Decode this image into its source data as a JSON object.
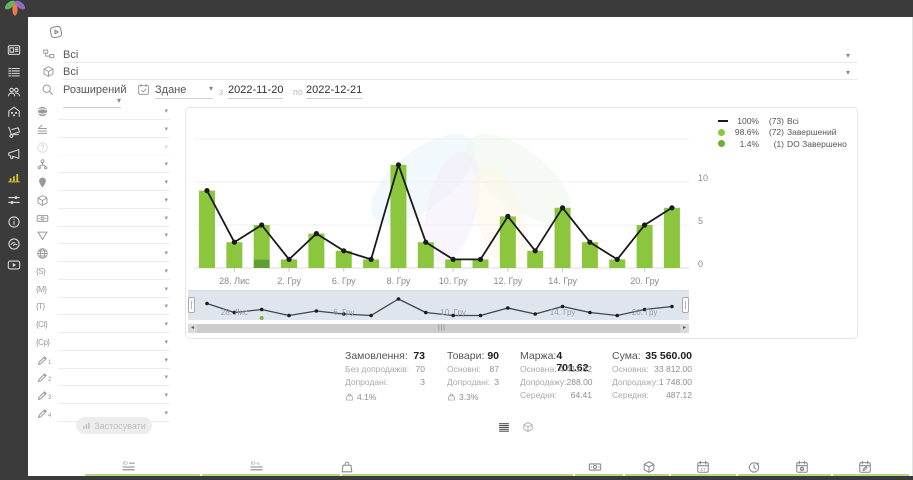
{
  "sidebar": {
    "items": [
      {
        "name": "dashboard",
        "icon": "dashboard",
        "active": false
      },
      {
        "name": "orders",
        "icon": "list",
        "active": false
      },
      {
        "name": "customers",
        "icon": "users",
        "active": false
      },
      {
        "name": "warehouse",
        "icon": "warehouse",
        "active": false
      },
      {
        "name": "purchases",
        "icon": "cart",
        "active": false
      },
      {
        "name": "marketing",
        "icon": "megaphone",
        "active": false
      },
      {
        "name": "analytics",
        "icon": "chart",
        "active": true
      },
      {
        "name": "automation",
        "icon": "sliders",
        "active": false
      },
      {
        "name": "info",
        "icon": "info",
        "active": false
      },
      {
        "name": "partners",
        "icon": "hands",
        "active": false
      },
      {
        "name": "tutorials",
        "icon": "video",
        "active": false
      }
    ]
  },
  "filters": {
    "status_value": "Всі",
    "product_value": "Всі",
    "mode_value": "Розширений",
    "date_type_value": "Здане",
    "from_label": "з",
    "from_value": "2022-11-20",
    "to_label": "по",
    "to_value": "2022-12-21",
    "apply_label": "Застосувати",
    "left_rows": [
      {
        "icon": "globesolid",
        "disabled": false
      },
      {
        "icon": "layers",
        "disabled": false
      },
      {
        "icon": "question",
        "disabled": true
      },
      {
        "icon": "sitemap",
        "disabled": false
      },
      {
        "icon": "pin",
        "disabled": false
      },
      {
        "icon": "cube",
        "disabled": false
      },
      {
        "icon": "banknote",
        "disabled": false
      },
      {
        "icon": "funnel",
        "disabled": false
      },
      {
        "icon": "globewire",
        "disabled": false
      },
      {
        "icon": "brace",
        "label": "S",
        "disabled": false
      },
      {
        "icon": "brace",
        "label": "M",
        "disabled": false
      },
      {
        "icon": "brace",
        "label": "T",
        "disabled": false
      },
      {
        "icon": "brace",
        "label": "Ct",
        "disabled": false
      },
      {
        "icon": "brace",
        "label": "Cp",
        "disabled": false
      },
      {
        "icon": "pencil",
        "label": "1",
        "disabled": false
      },
      {
        "icon": "pencil",
        "label": "2",
        "disabled": false
      },
      {
        "icon": "pencil",
        "label": "3",
        "disabled": false
      },
      {
        "icon": "pencil",
        "label": "4",
        "disabled": false
      }
    ]
  },
  "chart_data": {
    "type": "bar+line",
    "categories": [
      "",
      "28. Лис",
      "",
      "2. Гру",
      "",
      "6. Гру",
      "",
      "8. Гру",
      "",
      "10. Гру",
      "",
      "12. Гру",
      "",
      "14. Гру",
      "",
      "",
      "20. Гру",
      ""
    ],
    "series": [
      {
        "name": "Всі",
        "type": "line",
        "color": "#1a1a1a",
        "values": [
          9,
          3,
          5,
          1,
          4,
          2,
          1,
          12,
          3,
          1,
          1,
          6,
          2,
          7,
          3,
          1,
          5,
          7
        ]
      },
      {
        "name": "Завершений",
        "type": "bar",
        "color": "#8cc63e",
        "values": [
          9,
          3,
          4,
          1,
          4,
          2,
          1,
          12,
          3,
          1,
          1,
          6,
          2,
          7,
          3,
          1,
          5,
          7
        ]
      },
      {
        "name": "DO Завершено",
        "type": "bar",
        "color": "#5f9e33",
        "values": [
          0,
          0,
          1,
          0,
          0,
          0,
          0,
          0,
          0,
          0,
          0,
          0,
          0,
          0,
          0,
          0,
          0,
          0
        ]
      }
    ],
    "y_ticks": [
      0,
      5,
      10
    ],
    "ylim": [
      0,
      15
    ],
    "legend_position": "top-right",
    "legend": [
      {
        "marker": "line",
        "color": "#1a1a1a",
        "pct": "100%",
        "count": "(73)",
        "label": "Всі"
      },
      {
        "marker": "dot",
        "color": "#8cc63e",
        "pct": "98.6%",
        "count": "(72)",
        "label": "Завершений"
      },
      {
        "marker": "dot",
        "color": "#6aaf35",
        "pct": "1.4%",
        "count": "(1)",
        "label": "DO Завершено"
      }
    ]
  },
  "stats": {
    "columns": [
      {
        "title": "Замовлення:",
        "value": "73",
        "rows": [
          {
            "label": "Без допродажів:",
            "value": "70"
          },
          {
            "label": "Допродані:",
            "value": "3"
          }
        ],
        "pct": "4.1%"
      },
      {
        "title": "Товари:",
        "value": "90",
        "rows": [
          {
            "label": "Основні:",
            "value": "87"
          },
          {
            "label": "Допродані:",
            "value": "3"
          }
        ],
        "pct": "3.3%"
      },
      {
        "title": "Маржа:",
        "value": "4 701.62",
        "rows": [
          {
            "label": "Основна:",
            "value": "4 413.62"
          },
          {
            "label": "Допродажу:",
            "value": "288.00"
          },
          {
            "label": "Середня:",
            "value": "64.41"
          }
        ],
        "pct": null
      },
      {
        "title": "Сума:",
        "value": "35 560.00",
        "rows": [
          {
            "label": "Основна:",
            "value": "33 812.00"
          },
          {
            "label": "Допродажу:",
            "value": "1 748.00"
          },
          {
            "label": "Середня:",
            "value": "487.12"
          }
        ],
        "pct": null
      }
    ]
  },
  "footer": {
    "items": [
      {
        "name": "col-id",
        "icon": "idlist"
      },
      {
        "name": "col-id-alt",
        "icon": "idolist"
      },
      {
        "name": "col-upsell",
        "icon": "bag"
      },
      {
        "name": "col-money",
        "icon": "banknote"
      },
      {
        "name": "col-product",
        "icon": "cube"
      },
      {
        "name": "col-date",
        "icon": "cal17"
      },
      {
        "name": "col-time",
        "icon": "clock"
      },
      {
        "name": "col-date-in",
        "icon": "calup"
      },
      {
        "name": "col-date-edit",
        "icon": "caledit"
      }
    ]
  },
  "colors": {
    "bar_green": "#8cc63e",
    "bar_dark_green": "#5f9e33",
    "line_black": "#1a1a1a",
    "sidebar_bg": "#3b3b3b",
    "active_icon": "#d2c226",
    "footer_green": "#b5d983"
  }
}
